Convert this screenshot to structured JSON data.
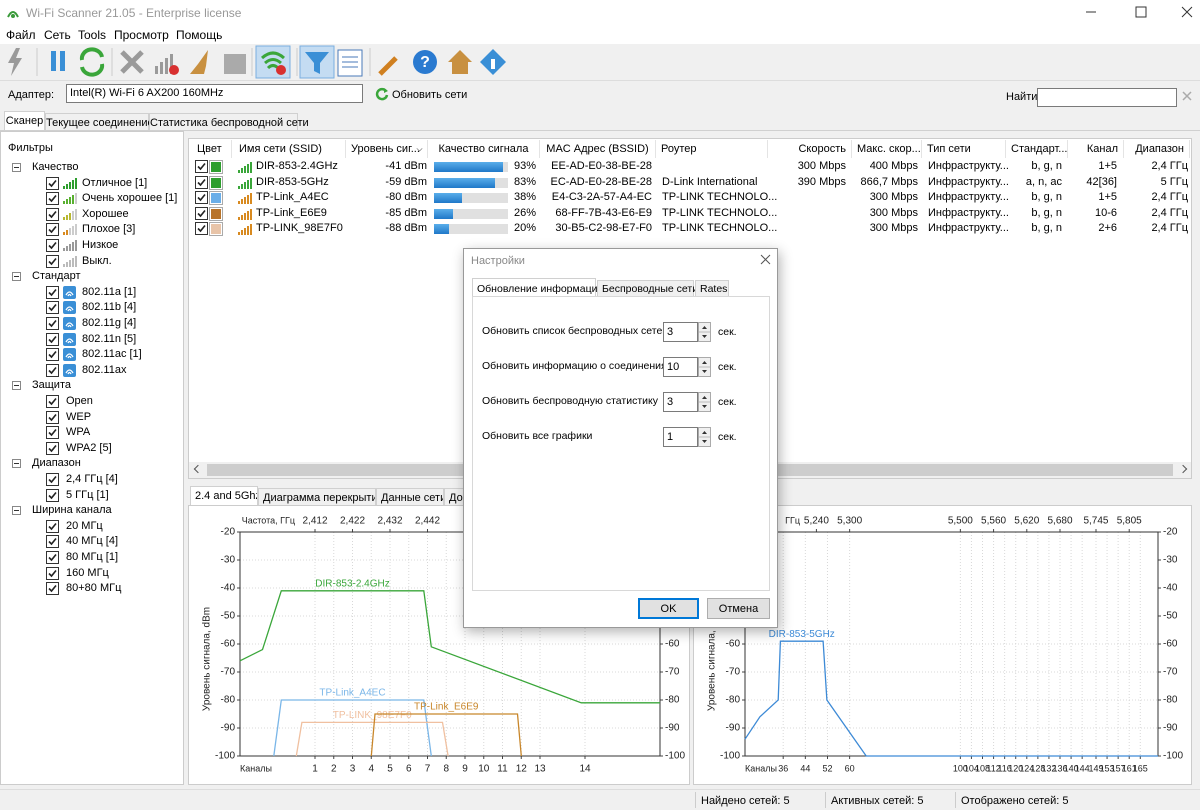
{
  "window": {
    "title": "Wi-Fi Scanner 21.05 - Enterprise license"
  },
  "menu": [
    "Файл",
    "Сеть",
    "Tools",
    "Просмотр",
    "Помощь"
  ],
  "adapter": {
    "label": "Адаптер:",
    "value": "Intel(R) Wi-Fi 6 AX200 160MHz",
    "refresh": "Обновить сети",
    "search_label": "Найти:"
  },
  "tabs": [
    "Сканер",
    "Текущее соединение",
    "Статистика беспроводной сети"
  ],
  "filters": {
    "title": "Фильтры",
    "groups": [
      {
        "name": "Качество",
        "items": [
          "Отличное [1]",
          "Очень хорошее [1]",
          "Хорошее",
          "Плохое [3]",
          "Низкое",
          "Выкл."
        ]
      },
      {
        "name": "Стандарт",
        "items": [
          "802.11a [1]",
          "802.11b [4]",
          "802.11g [4]",
          "802.11n [5]",
          "802.11ac [1]",
          "802.11ax"
        ]
      },
      {
        "name": "Защита",
        "items": [
          "Open",
          "WEP",
          "WPA",
          "WPA2 [5]"
        ]
      },
      {
        "name": "Диапазон",
        "items": [
          "2,4 ГГц [4]",
          "5 ГГц [1]"
        ]
      },
      {
        "name": "Ширина канала",
        "items": [
          "20 МГц",
          "40 МГц [4]",
          "80 МГц [1]",
          "160 МГц",
          "80+80 МГц"
        ]
      }
    ]
  },
  "table": {
    "columns": [
      "Цвет",
      "Имя сети (SSID)",
      "Уровень сиг...",
      "Качество сигнала",
      "MAC Адрес (BSSID)",
      "Роутер",
      "Скорость",
      "Макс. скор...",
      "Тип сети",
      "Стандарт...",
      "Канал",
      "Диапазон"
    ],
    "rows": [
      {
        "color": "#2e9e2e",
        "ssid": "DIR-853-2.4GHz",
        "signal": "-41 dBm",
        "quality": {
          "value": 93,
          "label": "93%"
        },
        "mac": "EE-AD-E0-38-BE-28",
        "router": null,
        "speed": "300 Mbps",
        "max_speed": "400 Mbps",
        "type": "Инфраструкту...",
        "standard": "b, g, n",
        "channel": "1+5",
        "band": "2,4 ГГц"
      },
      {
        "color": "#2e9e2e",
        "ssid": "DIR-853-5GHz",
        "signal": "-59 dBm",
        "quality": {
          "value": 83,
          "label": "83%"
        },
        "mac": "EC-AD-E0-28-BE-28",
        "router": "D-Link International",
        "speed": "390 Mbps",
        "max_speed": "866,7 Mbps",
        "type": "Инфраструкту...",
        "standard": "a, n, ac",
        "channel": "42[36]",
        "band": "5 ГГц"
      },
      {
        "color": "#6aaee8",
        "ssid": "TP-Link_A4EC",
        "signal": "-80 dBm",
        "quality": {
          "value": 38,
          "label": "38%"
        },
        "mac": "E4-C3-2A-57-A4-EC",
        "router": "TP-LINK TECHNOLO...",
        "speed": null,
        "max_speed": "300 Mbps",
        "type": "Инфраструкту...",
        "standard": "b, g, n",
        "channel": "1+5",
        "band": "2,4 ГГц"
      },
      {
        "color": "#b8742a",
        "ssid": "TP-Link_E6E9",
        "signal": "-85 dBm",
        "quality": {
          "value": 26,
          "label": "26%"
        },
        "mac": "68-FF-7B-43-E6-E9",
        "router": "TP-LINK TECHNOLO...",
        "speed": null,
        "max_speed": "300 Mbps",
        "type": "Инфраструкту...",
        "standard": "b, g, n",
        "channel": "10-6",
        "band": "2,4 ГГц"
      },
      {
        "color": "#e8c4a8",
        "ssid": "TP-LINK_98E7F0",
        "signal": "-88 dBm",
        "quality": {
          "value": 20,
          "label": "20%"
        },
        "mac": "30-B5-C2-98-E7-F0",
        "router": "TP-LINK TECHNOLO...",
        "speed": null,
        "max_speed": "300 Mbps",
        "type": "Инфраструкту...",
        "standard": "b, g, n",
        "channel": "2+6",
        "band": "2,4 ГГц"
      }
    ]
  },
  "bottom_tabs": [
    "2.4 and 5Ghz",
    "Диаграмма перекрытия",
    "Данные сети",
    "До"
  ],
  "chart_data": [
    {
      "type": "line",
      "freq_label": "Частота, ГГц",
      "channel_label": "Каналы",
      "ylabel": "Уровень сигнала, dBm",
      "grid": true,
      "xlim": [
        2392,
        2504
      ],
      "top_ticks": [
        {
          "value": 2412,
          "label": "2,412"
        },
        {
          "value": 2422,
          "label": "2,422"
        },
        {
          "value": 2432,
          "label": "2,432"
        },
        {
          "value": 2442,
          "label": "2,442"
        }
      ],
      "xticks": [
        {
          "value": 2412,
          "label": "1"
        },
        {
          "value": 2417,
          "label": "2"
        },
        {
          "value": 2422,
          "label": "3"
        },
        {
          "value": 2427,
          "label": "4"
        },
        {
          "value": 2432,
          "label": "5"
        },
        {
          "value": 2437,
          "label": "6"
        },
        {
          "value": 2442,
          "label": "7"
        },
        {
          "value": 2447,
          "label": "8"
        },
        {
          "value": 2452,
          "label": "9"
        },
        {
          "value": 2457,
          "label": "10"
        },
        {
          "value": 2462,
          "label": "11"
        },
        {
          "value": 2467,
          "label": "12"
        },
        {
          "value": 2472,
          "label": "13"
        },
        {
          "value": 2484,
          "label": "14"
        }
      ],
      "ylim": [
        -100,
        -20
      ],
      "yticks": [
        -20,
        -30,
        -40,
        -50,
        -60,
        -70,
        -80,
        -90,
        -100
      ],
      "y2lim": [
        -100,
        -20
      ],
      "y2ticks": [
        -60,
        -70,
        -80,
        -90,
        -100
      ],
      "series": [
        {
          "name": "DIR-853-2.4GHz",
          "color": "#3aa63a",
          "x": [
            2392,
            2398,
            2403,
            2441,
            2443,
            2483,
            2504
          ],
          "values": [
            -66,
            -62,
            -41,
            -41,
            -61,
            -81,
            -81
          ]
        },
        {
          "name": "TP-Link_A4EC",
          "color": "#7ab6e8",
          "x": [
            2401,
            2403,
            2441,
            2443
          ],
          "values": [
            -100,
            -80,
            -80,
            -100
          ]
        },
        {
          "name": "TP-LINK_98E7F0",
          "color": "#f0c0a0",
          "x": [
            2407,
            2408.5,
            2446,
            2447.5
          ],
          "values": [
            -100,
            -88,
            -88,
            -100
          ]
        },
        {
          "name": "TP-Link_E6E9",
          "color": "#c8862a",
          "x": [
            2427,
            2428,
            2466,
            2467
          ],
          "values": [
            -100,
            -85,
            -85,
            -100
          ]
        }
      ]
    },
    {
      "type": "line",
      "freq_label": "ГГц",
      "channel_label": "Каналы",
      "ylabel": "Уровень сигнала, dBm",
      "grid": true,
      "xlim": [
        5111,
        5857
      ],
      "top_ticks": [
        {
          "value": 5240,
          "label": "5,240"
        },
        {
          "value": 5300,
          "label": "5,300"
        },
        {
          "value": 5500,
          "label": "5,500"
        },
        {
          "value": 5560,
          "label": "5,560"
        },
        {
          "value": 5620,
          "label": "5,620"
        },
        {
          "value": 5680,
          "label": "5,680"
        },
        {
          "value": 5745,
          "label": "5,745"
        },
        {
          "value": 5805,
          "label": "5,805"
        }
      ],
      "xticks": [
        {
          "value": 5180,
          "label": "36"
        },
        {
          "value": 5220,
          "label": "44"
        },
        {
          "value": 5260,
          "label": "52"
        },
        {
          "value": 5300,
          "label": "60"
        },
        {
          "value": 5500,
          "label": "100"
        },
        {
          "value": 5520,
          "label": "104"
        },
        {
          "value": 5540,
          "label": "108"
        },
        {
          "value": 5560,
          "label": "112"
        },
        {
          "value": 5580,
          "label": "116"
        },
        {
          "value": 5600,
          "label": "120"
        },
        {
          "value": 5620,
          "label": "124"
        },
        {
          "value": 5640,
          "label": "128"
        },
        {
          "value": 5660,
          "label": "132"
        },
        {
          "value": 5680,
          "label": "136"
        },
        {
          "value": 5700,
          "label": "140"
        },
        {
          "value": 5720,
          "label": "144"
        },
        {
          "value": 5745,
          "label": "149"
        },
        {
          "value": 5765,
          "label": "153"
        },
        {
          "value": 5785,
          "label": "157"
        },
        {
          "value": 5805,
          "label": "161"
        },
        {
          "value": 5825,
          "label": "165"
        }
      ],
      "ylim": [
        -100,
        -20
      ],
      "yticks": [
        -60,
        -70,
        -80,
        -90,
        -100
      ],
      "y2lim": [
        -100,
        -20
      ],
      "y2ticks": [
        -20,
        -30,
        -40,
        -50,
        -60,
        -70,
        -80,
        -90,
        -100
      ],
      "series": [
        {
          "name": "DIR-853-5GHz",
          "color": "#3d8ad6",
          "x": [
            5111,
            5138,
            5171,
            5175,
            5252,
            5259,
            5330,
            5857
          ],
          "values": [
            -94,
            -86,
            -80,
            -59,
            -59,
            -80,
            -100,
            -100
          ]
        }
      ]
    }
  ],
  "dialog": {
    "title": "Настройки",
    "tabs": [
      "Обновление информации",
      "Беспроводные сети",
      "Rates"
    ],
    "fields": [
      {
        "label": "Обновить список беспроводных сетей",
        "value": 3,
        "unit": "сек."
      },
      {
        "label": "Обновить информацию о соединениях",
        "value": 10,
        "unit": "сек."
      },
      {
        "label": "Обновить беспроводную статистику",
        "value": 3,
        "unit": "сек."
      },
      {
        "label": "Обновить все графики",
        "value": 1,
        "unit": "сек."
      }
    ],
    "ok": "OK",
    "cancel": "Отмена"
  },
  "status": [
    "Найдено сетей: 5",
    "Активных сетей: 5",
    "Отображено сетей: 5"
  ]
}
